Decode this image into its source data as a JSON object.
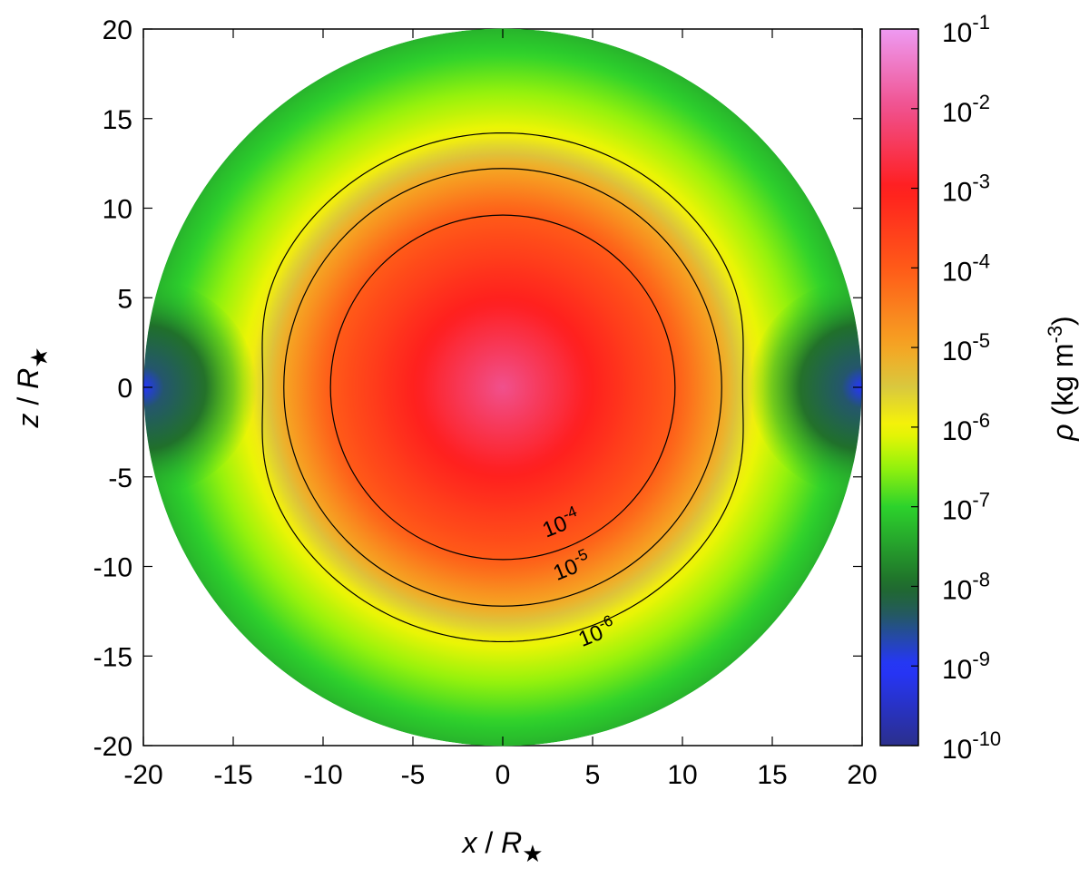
{
  "chart_data": {
    "type": "heatmap",
    "xlabel": {
      "var": "x",
      "sep": " / ",
      "sym": "R",
      "sub": "★"
    },
    "ylabel": {
      "var": "z",
      "sep": " / ",
      "sym": "R",
      "sub": "★"
    },
    "xlim": [
      -20,
      20
    ],
    "ylim": [
      -20,
      20
    ],
    "x_ticks": [
      -20,
      -15,
      -10,
      -5,
      0,
      5,
      10,
      15,
      20
    ],
    "y_ticks": [
      -20,
      -15,
      -10,
      -5,
      0,
      5,
      10,
      15,
      20
    ],
    "x_tick_labels": [
      "-20",
      "-15",
      "-10",
      "-5",
      "0",
      "5",
      "10",
      "15",
      "20"
    ],
    "y_tick_labels": [
      "-20",
      "-15",
      "-10",
      "-5",
      "0",
      "5",
      "10",
      "15",
      "20"
    ],
    "domain_radius": 20,
    "colorbar": {
      "label": {
        "var": "ρ",
        "pre": " (kg m",
        "sup": "-3",
        "post": ")"
      },
      "scale": "log",
      "range": [
        1e-10,
        0.1
      ],
      "ticks": [
        {
          "base": "10",
          "exp": "-1"
        },
        {
          "base": "10",
          "exp": "-2"
        },
        {
          "base": "10",
          "exp": "-3"
        },
        {
          "base": "10",
          "exp": "-4"
        },
        {
          "base": "10",
          "exp": "-5"
        },
        {
          "base": "10",
          "exp": "-6"
        },
        {
          "base": "10",
          "exp": "-7"
        },
        {
          "base": "10",
          "exp": "-8"
        },
        {
          "base": "10",
          "exp": "-9"
        },
        {
          "base": "10",
          "exp": "-10"
        }
      ],
      "colors": [
        {
          "log": -10,
          "color": "#2b2f8c"
        },
        {
          "log": -9,
          "color": "#2535ff"
        },
        {
          "log": -8.3,
          "color": "#245c55"
        },
        {
          "log": -8,
          "color": "#1f6b2b"
        },
        {
          "log": -7,
          "color": "#2cd22c"
        },
        {
          "log": -6.5,
          "color": "#96f20c"
        },
        {
          "log": -6,
          "color": "#f7f504"
        },
        {
          "log": -5.5,
          "color": "#d9c83e"
        },
        {
          "log": -5,
          "color": "#f5a623"
        },
        {
          "log": -4,
          "color": "#ff5a18"
        },
        {
          "log": -3,
          "color": "#ff1e1e"
        },
        {
          "log": -2,
          "color": "#f0508c"
        },
        {
          "log": -1,
          "color": "#ee9af2"
        }
      ]
    },
    "density_profile": {
      "description_units": "log10 rho along radius r (R_star)",
      "r": [
        0,
        9.6,
        12.2,
        14.2,
        20
      ],
      "log_rho": [
        -2.0,
        -4.0,
        -5.0,
        -6.0,
        -7.3
      ]
    },
    "contours": [
      {
        "level": {
          "base": "10",
          "exp": "-4"
        },
        "radius": 9.6,
        "label_at": [
          3.4,
          -8.0
        ]
      },
      {
        "level": {
          "base": "10",
          "exp": "-5"
        },
        "radius": 12.2,
        "label_at": [
          4.0,
          -10.4
        ]
      },
      {
        "level": {
          "base": "10",
          "exp": "-6"
        },
        "radius": 14.2,
        "label_at": [
          5.4,
          -14.1
        ]
      }
    ],
    "equatorial_low_density_regions": [
      {
        "side": "left",
        "x_range": [
          -20,
          -14
        ],
        "z_extent": 5.5,
        "min_log_rho": -9
      },
      {
        "side": "right",
        "x_range": [
          14,
          20
        ],
        "z_extent": 5.5,
        "min_log_rho": -9
      }
    ]
  }
}
